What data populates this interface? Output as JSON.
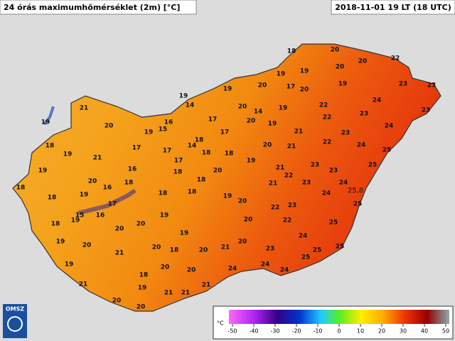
{
  "header": {
    "title": "24 órás maximumhőmérséklet (2m) [°C]",
    "timestamp": "2018-11-01 19 LT (18 UTC)"
  },
  "stations": [
    18,
    20,
    20,
    22,
    19,
    20,
    19,
    19,
    20,
    17,
    20,
    19,
    23,
    23,
    19,
    14,
    20,
    14,
    19,
    22,
    24,
    21,
    19,
    20,
    19,
    15,
    16,
    17,
    17,
    20,
    19,
    22,
    23,
    23,
    21,
    23,
    24,
    18,
    19,
    17,
    17,
    18,
    14,
    18,
    18,
    20,
    21,
    22,
    24,
    25,
    21,
    19,
    23,
    23,
    25,
    19,
    16,
    17,
    18,
    20,
    21,
    22,
    20,
    16,
    18,
    18,
    21,
    23,
    24,
    24,
    18,
    18,
    19,
    17,
    18,
    18,
    19,
    20,
    22,
    23,
    25,
    15,
    16,
    19,
    18,
    19,
    20,
    22,
    20,
    20,
    19,
    25,
    24,
    19,
    20,
    20,
    21,
    20,
    25,
    21,
    18,
    20,
    23,
    25,
    25,
    19,
    20,
    24,
    24,
    24,
    18,
    20,
    21,
    19,
    21,
    20,
    21,
    21,
    20
  ],
  "max_label": "25,8",
  "legend": {
    "unit": "°C",
    "ticks": [
      -50,
      -40,
      -30,
      -20,
      -10,
      0,
      10,
      20,
      30,
      40,
      50
    ]
  },
  "logo": "OMSZ"
}
